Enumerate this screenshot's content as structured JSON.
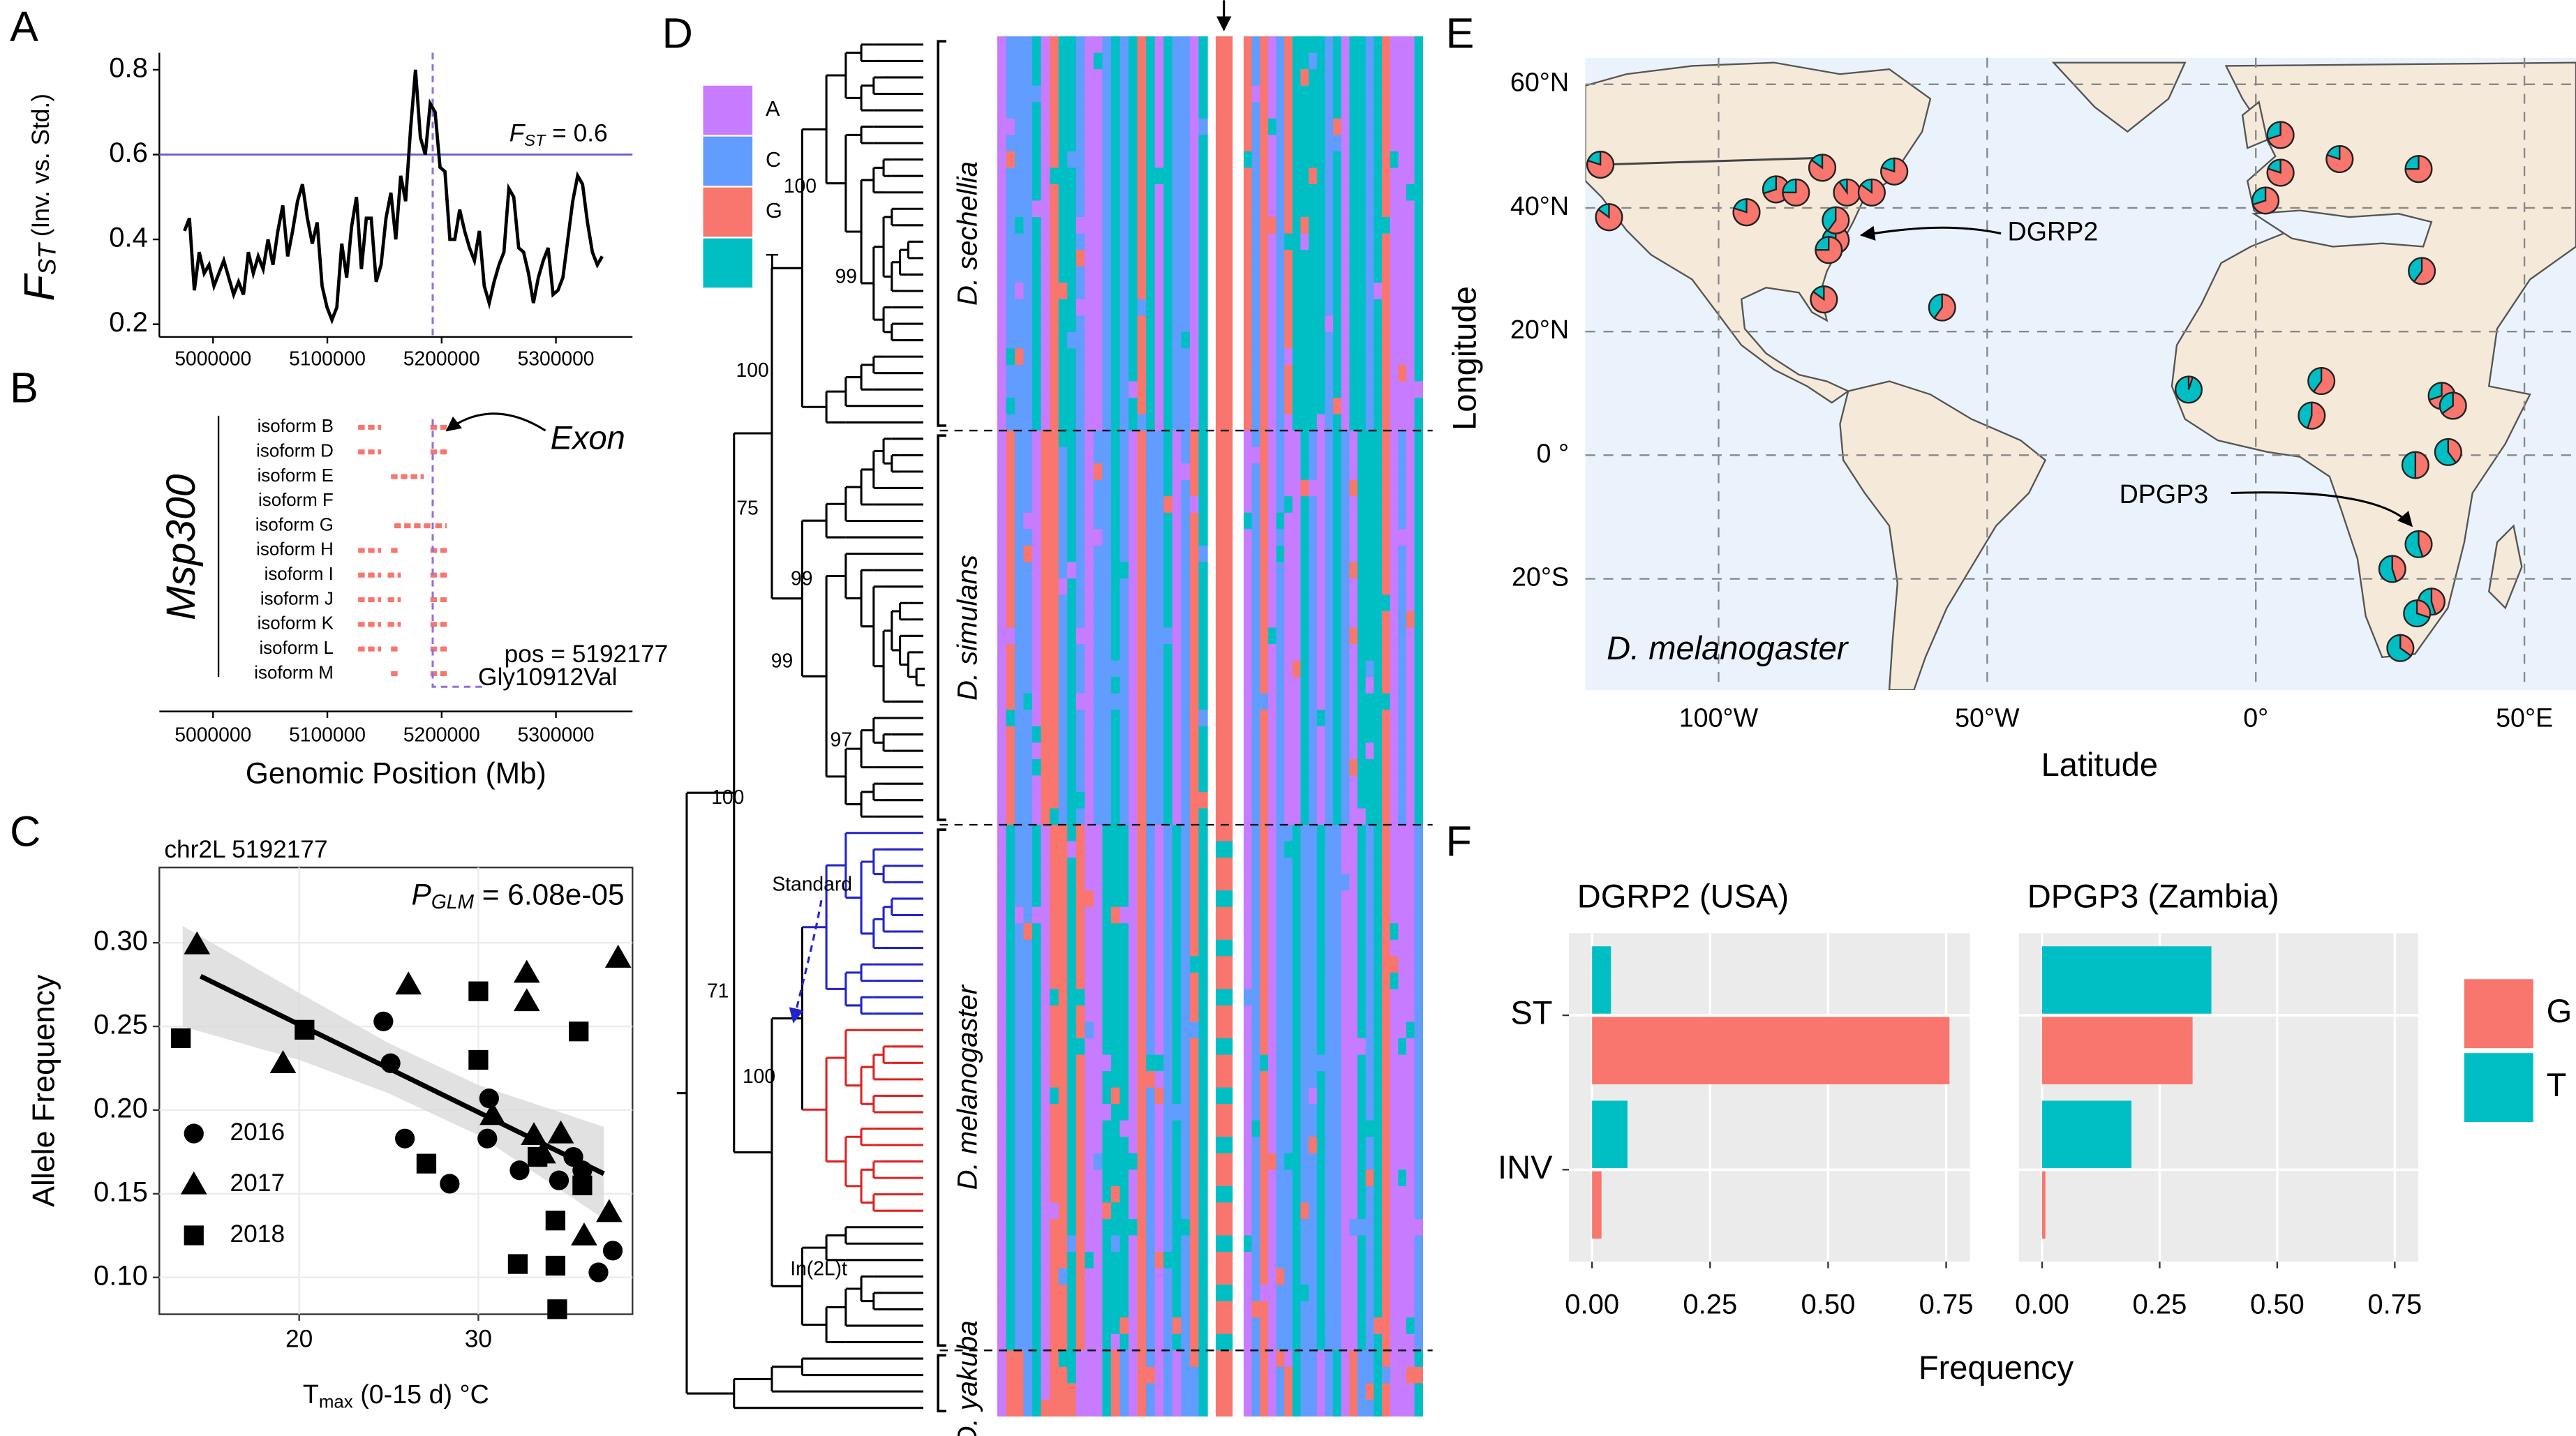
{
  "panel_labels": [
    "A",
    "B",
    "C",
    "D",
    "E",
    "F"
  ],
  "chart_data": [
    {
      "type": "line",
      "ylabel": [
        "F",
        "ST",
        " (Inv. vs. Std.)"
      ],
      "color": "#000000",
      "x": [
        4975000,
        4979300,
        4983600,
        4987900,
        4992200,
        4996500,
        5000800,
        5005100,
        5009400,
        5013700,
        5018000,
        5022300,
        5026600,
        5030900,
        5035200,
        5039500,
        5043800,
        5048100,
        5052400,
        5056700,
        5061000,
        5065300,
        5069600,
        5073900,
        5078200,
        5082500,
        5086800,
        5091100,
        5095400,
        5099700,
        5104000,
        5108300,
        5112600,
        5116900,
        5121200,
        5125500,
        5129800,
        5134100,
        5138400,
        5142700,
        5147000,
        5151300,
        5155600,
        5159900,
        5164200,
        5168500,
        5172800,
        5177100,
        5181400,
        5185700,
        5190000,
        5194300,
        5198600,
        5202900,
        5207200,
        5211500,
        5215800,
        5220100,
        5224400,
        5228700,
        5233000,
        5237300,
        5241600,
        5245900,
        5250200,
        5254500,
        5258800,
        5263100,
        5267400,
        5271700,
        5276000,
        5280300,
        5284600,
        5288900,
        5293200,
        5297500,
        5301800,
        5306100,
        5310400,
        5314700,
        5319000,
        5323300,
        5327600,
        5331900,
        5336200,
        5340500
      ],
      "values": [
        0.42,
        0.45,
        0.28,
        0.37,
        0.32,
        0.34,
        0.29,
        0.32,
        0.35,
        0.31,
        0.27,
        0.3,
        0.27,
        0.37,
        0.32,
        0.36,
        0.33,
        0.4,
        0.34,
        0.42,
        0.48,
        0.36,
        0.42,
        0.49,
        0.53,
        0.45,
        0.39,
        0.44,
        0.29,
        0.24,
        0.21,
        0.24,
        0.39,
        0.31,
        0.43,
        0.5,
        0.33,
        0.45,
        0.45,
        0.3,
        0.34,
        0.45,
        0.51,
        0.4,
        0.55,
        0.49,
        0.66,
        0.8,
        0.64,
        0.6,
        0.72,
        0.7,
        0.57,
        0.56,
        0.4,
        0.4,
        0.47,
        0.42,
        0.38,
        0.35,
        0.42,
        0.29,
        0.25,
        0.3,
        0.34,
        0.37,
        0.52,
        0.5,
        0.38,
        0.37,
        0.32,
        0.25,
        0.31,
        0.35,
        0.38,
        0.27,
        0.28,
        0.31,
        0.4,
        0.49,
        0.55,
        0.53,
        0.44,
        0.37,
        0.34,
        0.36
      ],
      "xlim": [
        4953000,
        5367000
      ],
      "ylim": [
        0.17,
        0.84
      ],
      "xticks": [
        5000000,
        5100000,
        5200000,
        5300000
      ],
      "yticks": [
        0.2,
        0.4,
        0.6,
        0.8
      ],
      "hline": 0.6,
      "hline_color": "#6a5acd",
      "hline_label": [
        "F",
        "ST",
        " = 0.6"
      ],
      "vline": 5192177,
      "vline_color": "#9370db"
    },
    {
      "type": "gene_model",
      "label": "Msp300",
      "categories": [
        "isoform B",
        "isoform D",
        "isoform E",
        "isoform F",
        "isoform G",
        "isoform H",
        "isoform I",
        "isoform J",
        "isoform K",
        "isoform L",
        "isoform M"
      ],
      "exon_color": "#f8766d",
      "xlim": [
        4953000,
        5367000
      ],
      "xticks": [
        5000000,
        5100000,
        5200000,
        5300000
      ],
      "xlabel": "Genomic Position (Mb)",
      "vline": 5192177,
      "vline_color": "#9370db",
      "annotations": [
        "Exon",
        "pos = 5192177",
        "Gly10912Val"
      ]
    },
    {
      "type": "scatter",
      "title": "chr2L 5192177",
      "annotation": [
        "P",
        "GLM",
        " = 6.08e-05"
      ],
      "xlabel": [
        "T",
        "max",
        " (0-15 d) °C"
      ],
      "ylabel": "Allele Frequency",
      "xlim": [
        12.2,
        38.6
      ],
      "ylim": [
        0.078,
        0.345
      ],
      "xticks": [
        20,
        30
      ],
      "yticks": [
        {
          "value": 0.1,
          "label": "0.10"
        },
        {
          "value": 0.15,
          "label": "0.15"
        },
        {
          "value": 0.2,
          "label": "0.20"
        },
        {
          "value": 0.25,
          "label": "0.25"
        },
        {
          "value": 0.3,
          "label": "0.30"
        }
      ],
      "series": [
        {
          "name": "2016",
          "marker": "circle",
          "color": "#000000",
          "x": [
            24.7,
            25.1,
            25.9,
            28.4,
            30.6,
            30.5,
            32.3,
            34.5,
            35.3,
            35.8,
            36.7,
            37.5
          ],
          "values": [
            0.253,
            0.228,
            0.183,
            0.156,
            0.207,
            0.183,
            0.164,
            0.158,
            0.172,
            0.164,
            0.103,
            0.116
          ]
        },
        {
          "name": "2017",
          "marker": "triangle",
          "color": "#000000",
          "x": [
            14.3,
            19.1,
            26.1,
            32.7,
            32.7,
            37.8,
            30.8,
            33.1,
            34.6,
            33.6,
            37.3,
            35.9
          ],
          "values": [
            0.299,
            0.228,
            0.275,
            0.282,
            0.265,
            0.291,
            0.197,
            0.185,
            0.186,
            0.174,
            0.139,
            0.125
          ]
        },
        {
          "name": "2018",
          "marker": "square",
          "color": "#000000",
          "x": [
            13.4,
            20.3,
            27.1,
            30.0,
            30.0,
            35.6,
            32.2,
            34.3,
            34.4,
            34.3,
            35.8,
            33.3
          ],
          "values": [
            0.243,
            0.248,
            0.168,
            0.271,
            0.23,
            0.247,
            0.108,
            0.107,
            0.081,
            0.134,
            0.155,
            0.172
          ]
        }
      ],
      "fit": {
        "x": [
          14.5,
          37
        ],
        "values": [
          0.28,
          0.162
        ]
      },
      "band": {
        "x": [
          13.5,
          20,
          25,
          30,
          37
        ],
        "upper": [
          0.31,
          0.27,
          0.24,
          0.215,
          0.19
        ],
        "lower": [
          0.25,
          0.23,
          0.21,
          0.185,
          0.135
        ]
      },
      "band_color": "#d9d9d9"
    },
    {
      "type": "map",
      "xlabel": "Latitude",
      "ylabel": "Longitude",
      "xlim": [
        -124.8,
        59.6
      ],
      "ylim": [
        -38,
        64.3
      ],
      "xticks": [
        {
          "value": -100,
          "label": "100°W"
        },
        {
          "value": -50,
          "label": "50°W"
        },
        {
          "value": 0,
          "label": "0°"
        },
        {
          "value": 50,
          "label": "50°E"
        }
      ],
      "yticks": [
        {
          "value": 60,
          "label": "60°N"
        },
        {
          "value": 40,
          "label": "40°N"
        },
        {
          "value": 20,
          "label": "20°N"
        },
        {
          "value": 0,
          "label": "0 °"
        },
        {
          "value": -20,
          "label": "20°S"
        }
      ],
      "annotations": [
        "DGRP2",
        "DPGP3"
      ],
      "species": "D. melanogaster",
      "colors": [
        "#f8766d",
        "#00bfc4"
      ],
      "pies": {
        "x": [
          -122,
          -120.4,
          -94.8,
          -89.3,
          -85.6,
          -80.7,
          -78.2,
          -79.5,
          -78.2,
          -76.1,
          -71.5,
          -67.3,
          -80.4,
          -58.4,
          4.6,
          4.6,
          1.8,
          15.6,
          30.3,
          30.9,
          -12.5,
          12.2,
          10.4,
          34.6,
          36.7,
          29.7,
          35.8,
          30.3,
          25.4,
          32.7,
          30,
          26.9
        ],
        "y": [
          47,
          38.5,
          39.3,
          43,
          42.5,
          46.5,
          34.8,
          33.2,
          38,
          42.5,
          42.5,
          45.9,
          25.2,
          23.9,
          51.8,
          45.7,
          41.2,
          47.9,
          46.3,
          29.8,
          10.6,
          12,
          6.4,
          9.6,
          8,
          -1.6,
          0.5,
          -14.4,
          -18.4,
          -23.7,
          -25.6,
          -31.2
        ],
        "values": [
          0.8,
          0.85,
          0.8,
          0.7,
          0.75,
          0.85,
          0.7,
          0.75,
          0.6,
          0.9,
          0.85,
          0.8,
          0.85,
          0.6,
          0.7,
          0.8,
          0.7,
          0.8,
          0.75,
          0.6,
          0.05,
          0.6,
          0.55,
          0.7,
          0.65,
          0.5,
          0.4,
          0.45,
          0.45,
          0.45,
          0.3,
          0.35
        ]
      }
    },
    {
      "type": "faceted_bar",
      "categories": [
        "ST",
        "INV"
      ],
      "xlabel": "Frequency",
      "xlim": [
        -0.049,
        0.8
      ],
      "xticks": [
        {
          "value": 0,
          "label": "0.00"
        },
        {
          "value": 0.25,
          "label": "0.25"
        },
        {
          "value": 0.5,
          "label": "0.50"
        },
        {
          "value": 0.75,
          "label": "0.75"
        }
      ],
      "facets": [
        {
          "title": "DGRP2 (USA)",
          "series": [
            {
              "name": "G",
              "color": "#f8766d",
              "values": [
                0.757,
                0.02
              ]
            },
            {
              "name": "T",
              "color": "#00bfc4",
              "values": [
                0.04,
                0.075
              ]
            }
          ]
        },
        {
          "title": "DPGP3 (Zambia)",
          "series": [
            {
              "name": "G",
              "color": "#f8766d",
              "values": [
                0.32,
                0.007
              ]
            },
            {
              "name": "T",
              "color": "#00bfc4",
              "values": [
                0.36,
                0.19
              ]
            }
          ]
        }
      ]
    }
  ],
  "alignment": {
    "clades": [
      "D. sechellia",
      "D. simulans",
      "D. melanogaster",
      "D. yakuba"
    ],
    "legend": [
      "A",
      "C",
      "G",
      "T"
    ],
    "legend_colors": [
      "#c77cff",
      "#619cff",
      "#f8766d",
      "#00bfc4"
    ],
    "bootstrap": [
      100,
      99,
      100,
      75,
      99,
      99,
      97,
      100,
      71,
      100
    ],
    "labels": [
      "Standard",
      "In(2L)t"
    ],
    "branch_colors": [
      "#2222cc",
      "#dd2222"
    ]
  }
}
